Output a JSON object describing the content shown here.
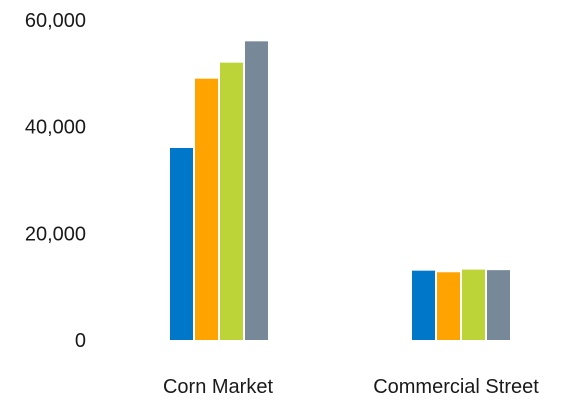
{
  "chart_data": {
    "type": "bar",
    "title": "",
    "xlabel": "",
    "ylabel": "",
    "categories": [
      "Corn Market",
      "Commercial Street"
    ],
    "series": [
      {
        "values": [
          36000,
          13000
        ],
        "color": "#0077c8"
      },
      {
        "values": [
          49000,
          12700
        ],
        "color": "#ffa300"
      },
      {
        "values": [
          52000,
          13200
        ],
        "color": "#bcd437"
      },
      {
        "values": [
          56000,
          13100
        ],
        "color": "#778899"
      }
    ],
    "ylim": [
      0,
      60000
    ],
    "yticks": [
      0,
      20000,
      40000,
      60000
    ],
    "ytick_labels": [
      "0",
      "20,000",
      "40,000",
      "60,000"
    ],
    "grid": false,
    "legend": "none"
  }
}
